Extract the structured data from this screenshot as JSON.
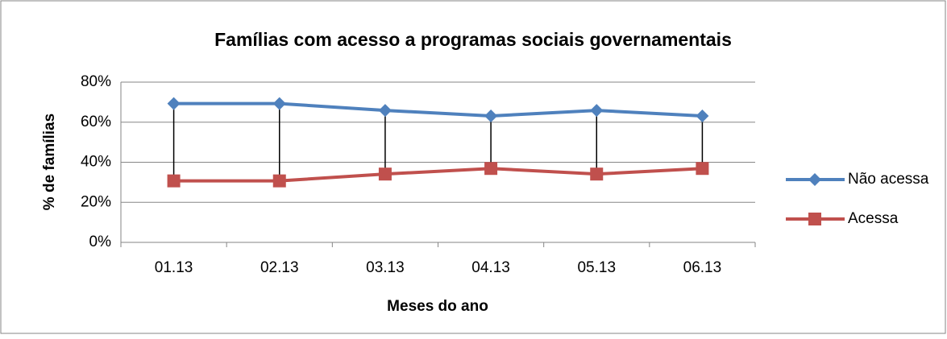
{
  "chart_data": {
    "type": "line",
    "title": "Famílias com acesso a programas sociais governamentais",
    "x_label": "Meses do ano",
    "y_label": "% de famílias",
    "categories": [
      "01.13",
      "02.13",
      "03.13",
      "04.13",
      "05.13",
      "06.13"
    ],
    "series": [
      {
        "name": "Não acessa",
        "color": "#4f81bd",
        "marker": "diamond",
        "values": [
          69.3,
          69.3,
          65.9,
          63.1,
          65.9,
          63.1
        ]
      },
      {
        "name": "Acessa",
        "color": "#c0504d",
        "marker": "square",
        "values": [
          30.7,
          30.7,
          34.1,
          36.9,
          34.1,
          36.9
        ]
      }
    ],
    "ylim": [
      0,
      80
    ],
    "yticks": [
      {
        "value": 0,
        "label": "0%"
      },
      {
        "value": 20,
        "label": "20%"
      },
      {
        "value": 40,
        "label": "40%"
      },
      {
        "value": 60,
        "label": "60%"
      },
      {
        "value": 80,
        "label": "80%"
      }
    ],
    "grid": true,
    "high_low_lines": true,
    "legend": "right"
  }
}
